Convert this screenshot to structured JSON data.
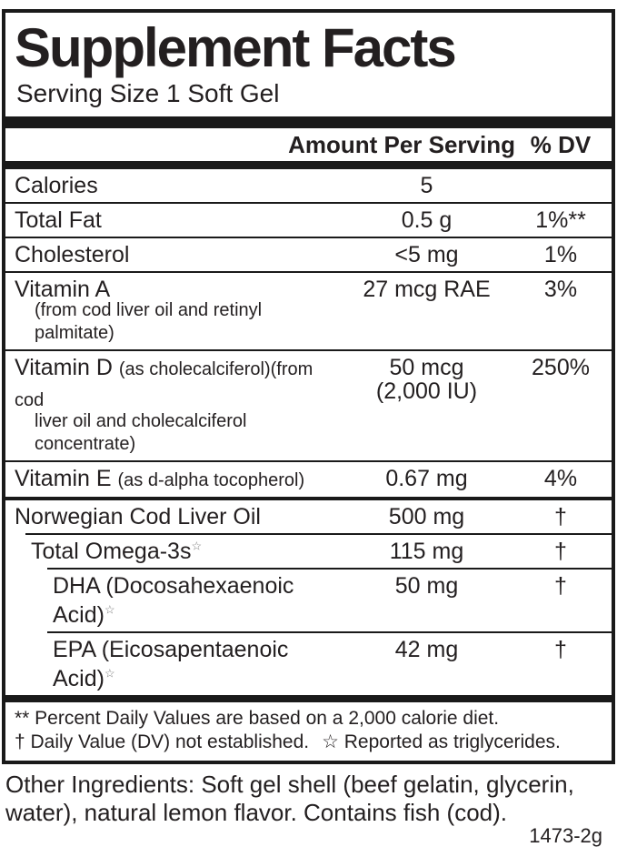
{
  "label": {
    "title": "Supplement Facts",
    "serving_size": "Serving Size 1 Soft Gel",
    "columns": {
      "amount": "Amount Per Serving",
      "dv": "% DV"
    },
    "rows": [
      {
        "name": "Calories",
        "amount": "5",
        "dv": ""
      },
      {
        "name": "Total Fat",
        "amount": "0.5 g",
        "dv": "1%**"
      },
      {
        "name": "Cholesterol",
        "amount": "<5 mg",
        "dv": "1%"
      },
      {
        "name": "Vitamin A",
        "name_note2": "(from cod liver oil and retinyl palmitate)",
        "amount": "27 mcg RAE",
        "dv": "3%"
      },
      {
        "name": "Vitamin D",
        "name_note": "(as cholecalciferol)(from cod",
        "name_note2": "liver oil and cholecalciferol concentrate)",
        "amount": "50 mcg",
        "amount2": "(2,000 IU)",
        "dv": "250%"
      },
      {
        "name": "Vitamin E",
        "name_note": "(as d-alpha tocopherol)",
        "amount": "0.67 mg",
        "dv": "4%"
      },
      {
        "name": "Norwegian Cod Liver Oil",
        "amount": "500 mg",
        "dv": "†"
      },
      {
        "name": "Total Omega-3s",
        "star": "☆",
        "amount": "115 mg",
        "dv": "†"
      },
      {
        "name": "DHA (Docosahexaenoic Acid)",
        "star": "☆",
        "amount": "50 mg",
        "dv": "†"
      },
      {
        "name": "EPA (Eicosapentaenoic Acid)",
        "star": "☆",
        "amount": "42 mg",
        "dv": "†"
      }
    ],
    "footnotes": {
      "line1": "** Percent Daily Values are based on a 2,000 calorie diet.",
      "line2a": "† Daily Value (DV) not established.",
      "line2b": "☆ Reported as triglycerides."
    }
  },
  "other_ingredients": {
    "line1": "Other Ingredients:  Soft gel shell (beef gelatin, glycerin,",
    "line2": "water), natural lemon flavor.   Contains fish (cod)."
  },
  "product_code": "1473-2g"
}
